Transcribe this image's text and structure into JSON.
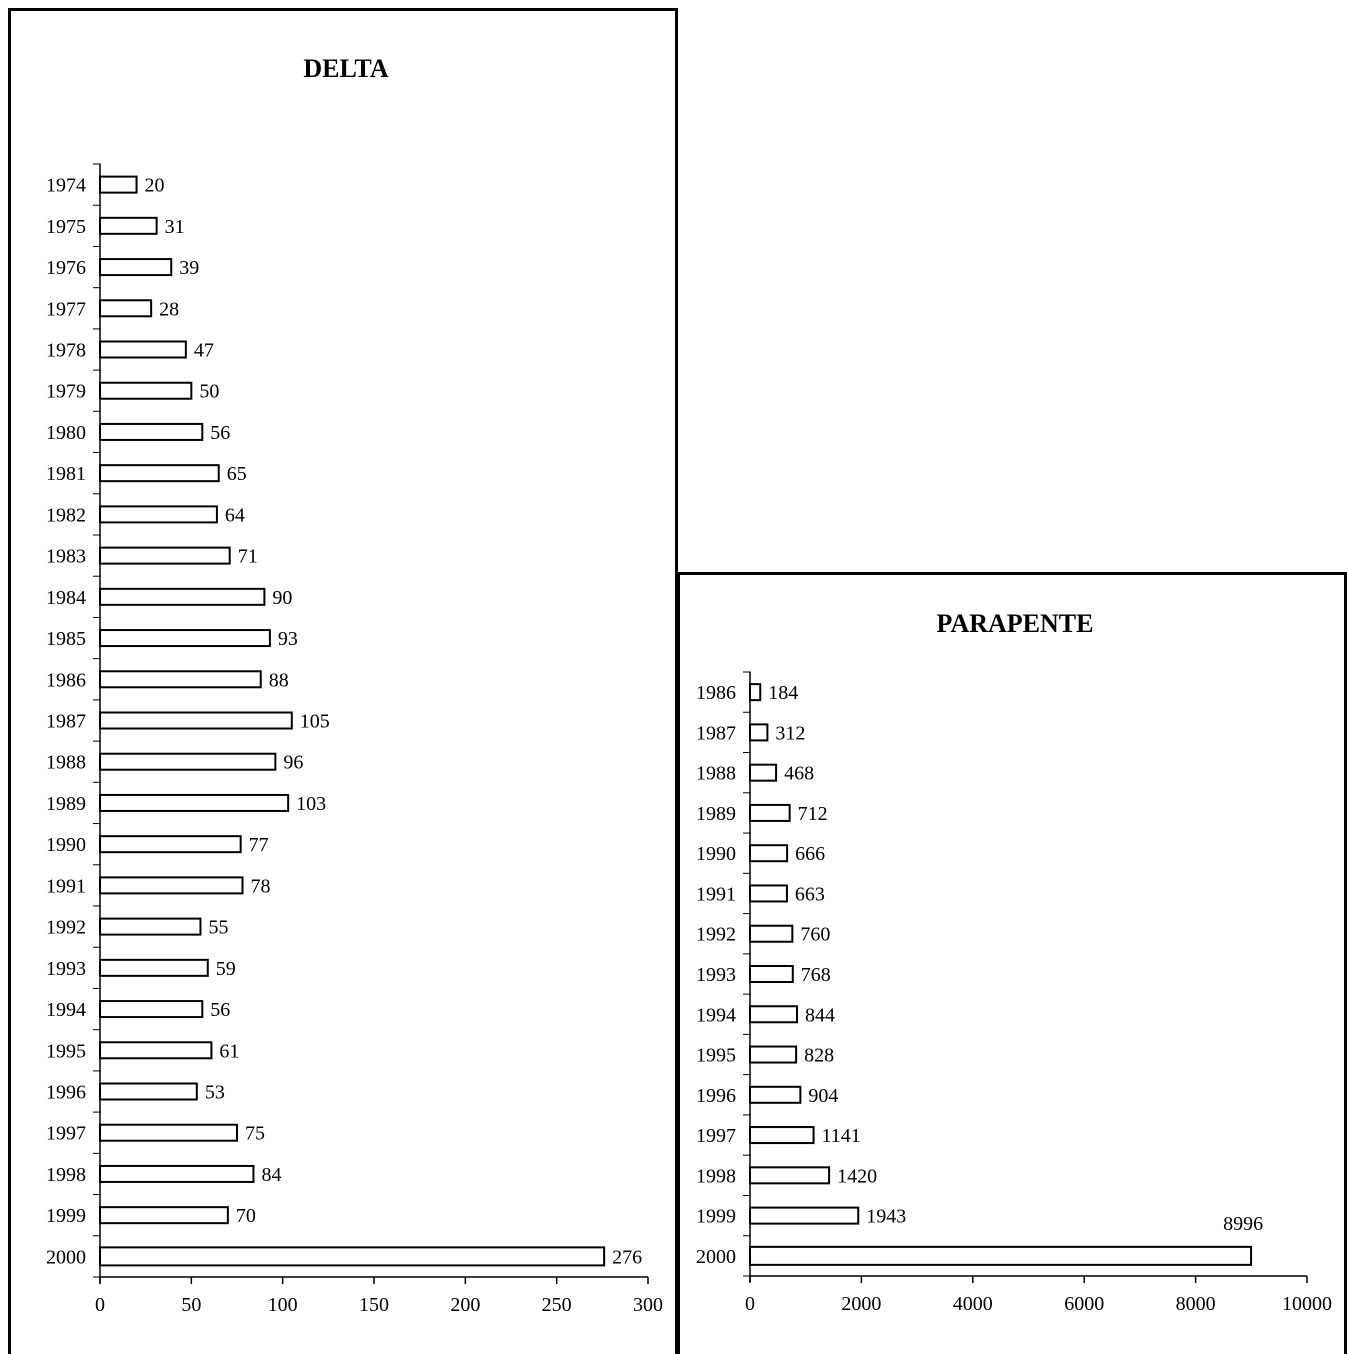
{
  "chart_data": [
    {
      "type": "bar",
      "orientation": "horizontal",
      "title": "DELTA",
      "categories": [
        "1974",
        "1975",
        "1976",
        "1977",
        "1978",
        "1979",
        "1980",
        "1981",
        "1982",
        "1983",
        "1984",
        "1985",
        "1986",
        "1987",
        "1988",
        "1989",
        "1990",
        "1991",
        "1992",
        "1993",
        "1994",
        "1995",
        "1996",
        "1997",
        "1998",
        "1999",
        "2000"
      ],
      "values": [
        20,
        31,
        39,
        28,
        47,
        50,
        56,
        65,
        64,
        71,
        90,
        93,
        88,
        105,
        96,
        103,
        77,
        78,
        55,
        59,
        56,
        61,
        53,
        75,
        84,
        70,
        276
      ],
      "xlim": [
        0,
        300
      ],
      "xticks": [
        "0",
        "50",
        "100",
        "150",
        "200",
        "250",
        "300"
      ],
      "data_labels": true,
      "grid": false,
      "bar_fill": "#ffffff",
      "bar_stroke": "#000000"
    },
    {
      "type": "bar",
      "orientation": "horizontal",
      "title": "PARAPENTE",
      "categories": [
        "1986",
        "1987",
        "1988",
        "1989",
        "1990",
        "1991",
        "1992",
        "1993",
        "1994",
        "1995",
        "1996",
        "1997",
        "1998",
        "1999",
        "2000"
      ],
      "values": [
        184,
        312,
        468,
        712,
        666,
        663,
        760,
        768,
        844,
        828,
        904,
        1141,
        1420,
        1943,
        8996
      ],
      "xlim": [
        0,
        10000
      ],
      "xticks": [
        "0",
        "2000",
        "4000",
        "6000",
        "8000",
        "10000"
      ],
      "data_labels": true,
      "grid": false,
      "bar_fill": "#ffffff",
      "bar_stroke": "#000000"
    }
  ]
}
